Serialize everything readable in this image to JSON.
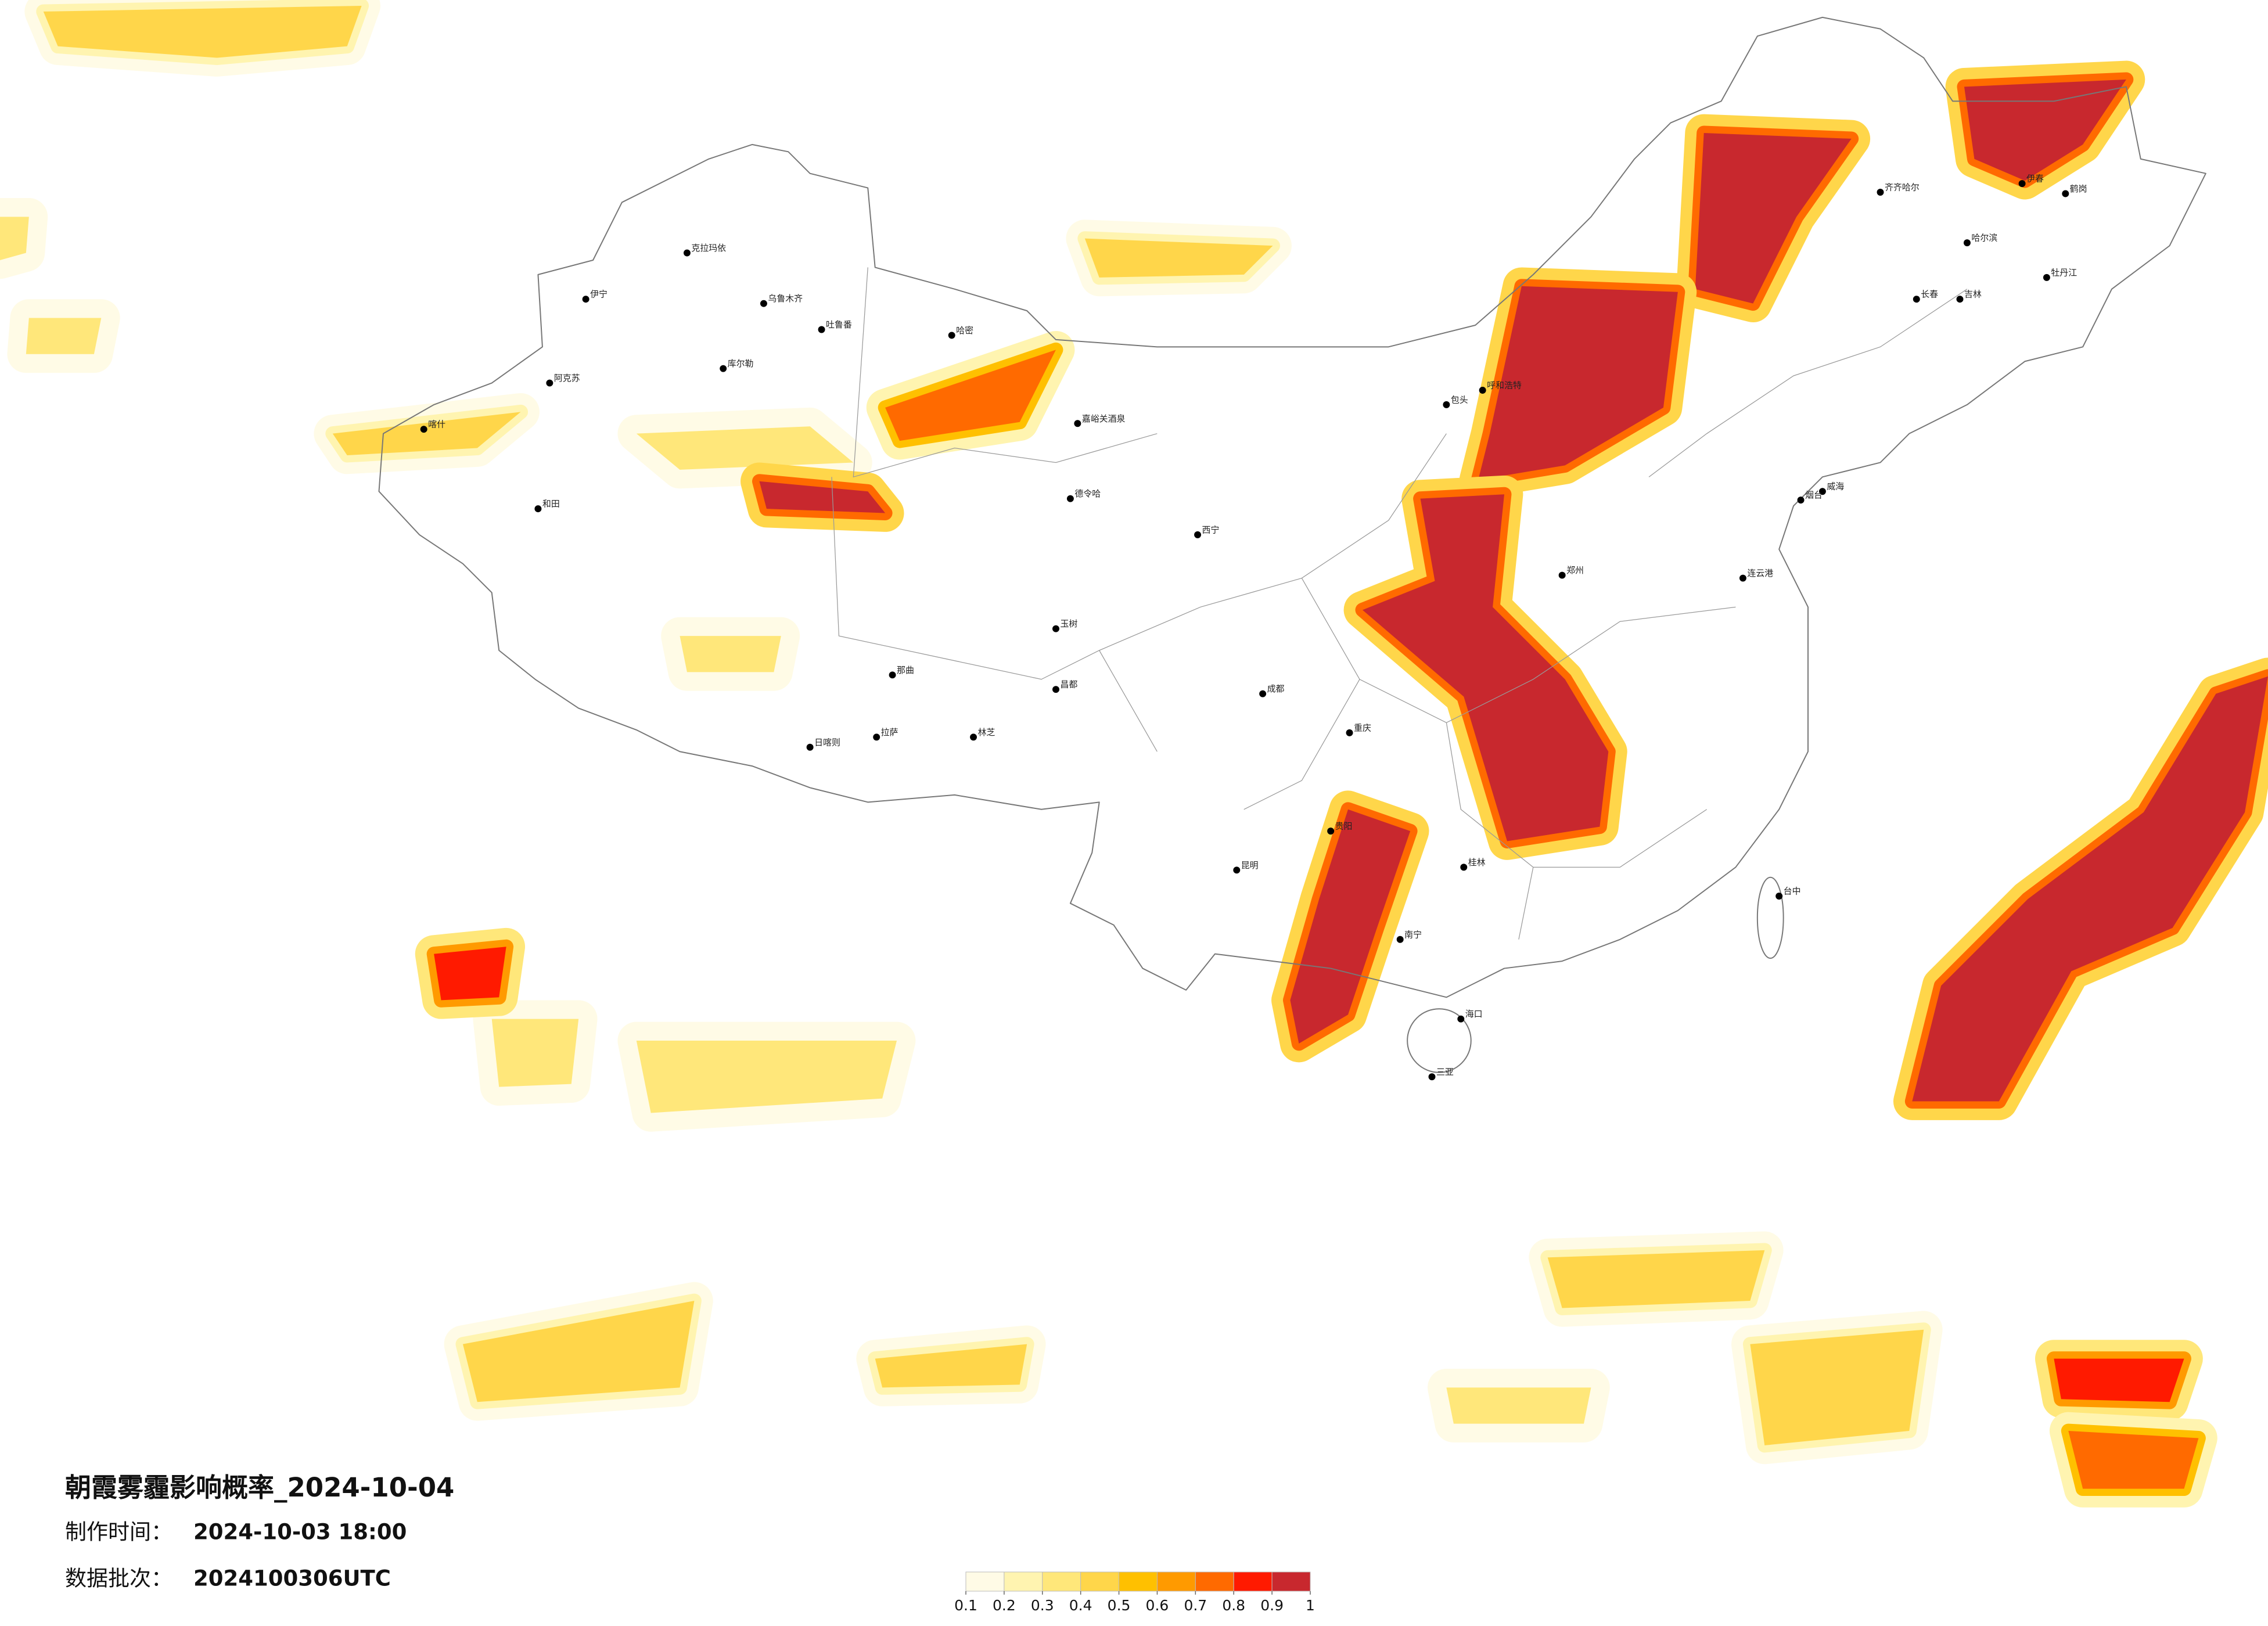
{
  "header": {
    "title": "朝霞雾霾影响概率_2024-10-04",
    "issue_label": "制作时间：",
    "issue_time": "2024-10-03 18:00",
    "batch_label": "数据批次：",
    "batch": "2024100306UTC"
  },
  "colorbar": {
    "ticks": [
      0.1,
      0.2,
      0.3,
      0.4,
      0.5,
      0.6,
      0.7,
      0.8,
      0.9,
      1
    ],
    "colors": [
      "#fffbe6",
      "#fff4b0",
      "#ffe77a",
      "#ffd64a",
      "#ffc000",
      "#ff9a00",
      "#ff6a00",
      "#ff1a00",
      "#c8282e"
    ]
  },
  "cities": [
    "克拉玛依",
    "乌鲁木齐",
    "伊宁",
    "阿克苏",
    "喀什",
    "和田",
    "吐鲁番",
    "哈密",
    "库尔勒",
    "嘉峪关酒泉",
    "德令哈",
    "那曲",
    "日喀则",
    "拉萨",
    "林芝",
    "昌都",
    "玉树",
    "西宁",
    "呼和浩特",
    "包头",
    "哈尔滨",
    "长春",
    "吉林",
    "齐齐哈尔",
    "威海",
    "烟台",
    "连云港",
    "郑州",
    "重庆",
    "成都",
    "贵阳",
    "昆明",
    "南宁",
    "桂林",
    "台中",
    "海口",
    "三亚",
    "伊春",
    "鹤岗",
    "牡丹江"
  ]
}
